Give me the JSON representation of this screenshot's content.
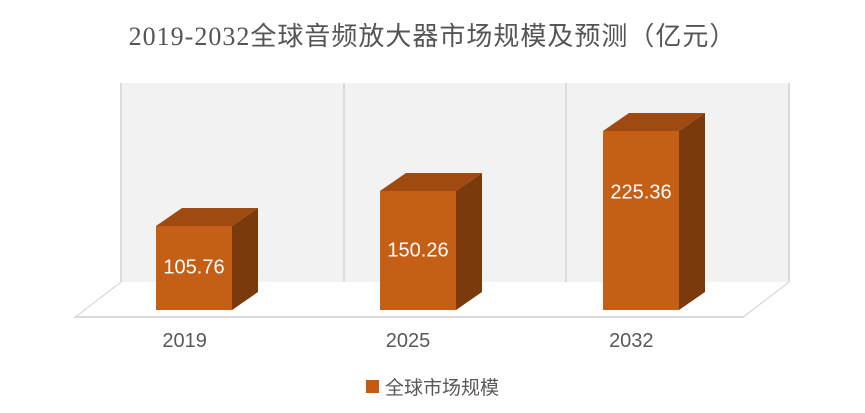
{
  "title": "2019-2032全球音频放大器市场规模及预测（亿元）",
  "chart_data": {
    "type": "bar",
    "variant": "3d-column",
    "title": "2019-2032全球音频放大器市场规模及预测（亿元）",
    "categories": [
      "2019",
      "2025",
      "2032"
    ],
    "series": [
      {
        "name": "全球市场规模",
        "values": [
          105.76,
          150.26,
          225.36
        ]
      }
    ],
    "data_labels": [
      "105.76",
      "150.26",
      "225.36"
    ],
    "xlabel": "",
    "ylabel": "",
    "ylim": [
      0,
      250
    ],
    "grid": false,
    "legend_position": "bottom"
  },
  "legend": {
    "label": "全球市场规模",
    "swatch_color": "#C55A11"
  },
  "colors": {
    "bar_front": "#C55F16",
    "bar_top": "#9F4A10",
    "bar_side": "#7B3A0C",
    "wall": "#F2F2F2",
    "wall_separator": "#DBDBDB",
    "floor": "#FFFFFF",
    "frame_line": "#D9D9D9",
    "title_text": "#555555",
    "axis_text": "#595959",
    "value_label_text": "#FFFFFF"
  }
}
